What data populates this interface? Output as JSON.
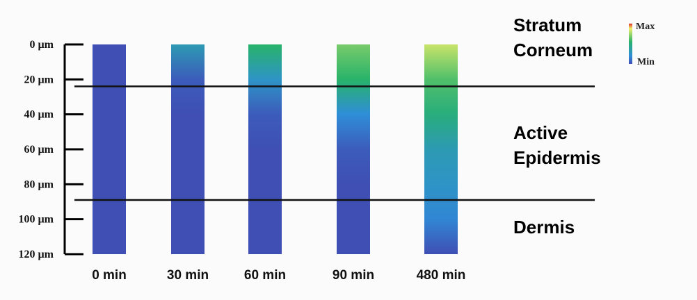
{
  "chart_data": {
    "type": "heatmap",
    "y_axis": {
      "ticks": [
        "0 µm",
        "20 µm",
        "40 µm",
        "60 µm",
        "80 µm",
        "100 µm",
        "120 µm"
      ],
      "range": [
        0,
        120
      ],
      "reversed": true
    },
    "categories": [
      "0 min",
      "30 min",
      "60 min",
      "90 min",
      "480 min"
    ],
    "depth_profiles": [
      [
        0,
        0,
        0,
        0,
        0,
        0,
        0
      ],
      [
        0.35,
        0.05,
        0,
        0,
        0,
        0,
        0
      ],
      [
        0.55,
        0.3,
        0.05,
        0,
        0,
        0,
        0
      ],
      [
        0.65,
        0.55,
        0.25,
        0.05,
        0,
        0,
        0
      ],
      [
        0.75,
        0.6,
        0.5,
        0.35,
        0.3,
        0.22,
        0
      ]
    ],
    "layer_boundaries": [
      24,
      89
    ],
    "layers": [
      {
        "label_lines": [
          "Stratum",
          "Corneum"
        ]
      },
      {
        "label_lines": [
          "Active",
          "Epidermis"
        ]
      },
      {
        "label_lines": [
          "Dermis"
        ]
      }
    ],
    "legend": {
      "max_label": "Max",
      "min_label": "Min"
    },
    "colors": {
      "min": "#3f4fb4",
      "low": "#2f8ed8",
      "mid": "#28b36a",
      "high": "#f0f06a",
      "max": "#e0322a"
    }
  }
}
